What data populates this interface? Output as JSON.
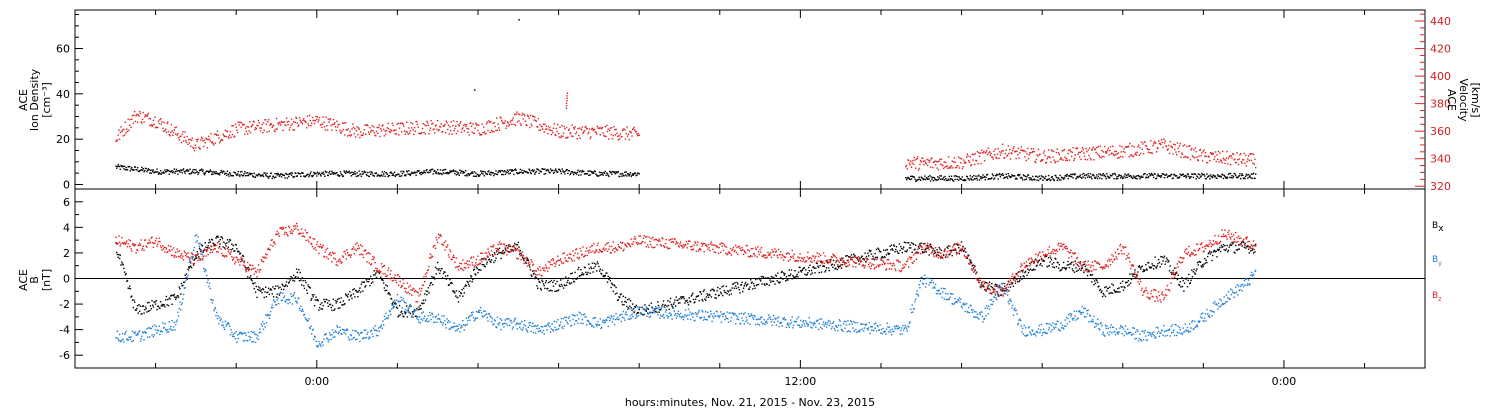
{
  "chart_data": [
    {
      "type": "scatter",
      "panel": "top",
      "ylabel_left": [
        "ACE",
        "Ion Density",
        "[cm⁻³]"
      ],
      "ylabel_right": [
        "ACE",
        "Velocity",
        "[km/s]"
      ],
      "yticks_left": [
        "0",
        "20",
        "40",
        "60"
      ],
      "yticks_right": [
        "320",
        "340",
        "360",
        "380",
        "400",
        "420",
        "440"
      ],
      "ylim_left": [
        -2,
        77
      ],
      "ylim_right": [
        318,
        448
      ],
      "gaps": [
        [
          8.3,
          14.6
        ]
      ],
      "series": [
        {
          "name": "Ion Density",
          "axis": "left",
          "color": "#000000",
          "x": [
            -5,
            -4.5,
            -4,
            -3,
            -2,
            -1,
            0,
            1,
            2,
            3,
            4,
            5,
            6,
            7,
            8.0
          ],
          "values": [
            8,
            7,
            6,
            6,
            5,
            4,
            5,
            5,
            5,
            6,
            5,
            6,
            6,
            5,
            5
          ]
        },
        {
          "name": "Velocity",
          "axis": "right",
          "color": "#e02020",
          "x": [
            -5,
            -4.5,
            -4,
            -3,
            -2,
            -1,
            0,
            1,
            2,
            3,
            4,
            5,
            6,
            7,
            8.0
          ],
          "values": [
            355,
            372,
            368,
            350,
            362,
            365,
            368,
            360,
            362,
            364,
            362,
            370,
            360,
            360,
            358
          ]
        },
        {
          "name": "Ion Density",
          "axis": "left",
          "color": "#000000",
          "x": [
            14.6,
            15,
            16,
            17,
            18,
            19,
            20,
            21,
            22,
            23.3
          ],
          "values": [
            3,
            3,
            3,
            4,
            3,
            4,
            4,
            4,
            4,
            4
          ]
        },
        {
          "name": "Velocity",
          "axis": "right",
          "color": "#e02020",
          "x": [
            14.6,
            15,
            16,
            17,
            18,
            19,
            20,
            21,
            22,
            23.3
          ],
          "values": [
            338,
            337,
            338,
            346,
            342,
            344,
            346,
            350,
            342,
            339
          ]
        }
      ],
      "annotations": [
        {
          "x": 5.0,
          "y": 73,
          "axis": "left",
          "note": "isolated density point"
        },
        {
          "x": 3.9,
          "y": 42,
          "axis": "left",
          "note": "isolated density point"
        },
        {
          "x": 6.2,
          "y": 388,
          "axis": "right",
          "note": "velocity spike"
        }
      ]
    },
    {
      "type": "scatter",
      "panel": "bottom",
      "ylabel_left": [
        "ACE",
        "B",
        "[nT]"
      ],
      "yticks_left": [
        "-6",
        "-4",
        "-2",
        "0",
        "2",
        "4",
        "6"
      ],
      "ylim_left": [
        -7,
        7
      ],
      "zero_line": true,
      "legend_position": "right",
      "legend": [
        {
          "label": "B",
          "sub": "x",
          "color": "#000000"
        },
        {
          "label": "B",
          "sub": "y",
          "color": "#1f7fd6"
        },
        {
          "label": "B",
          "sub": "z",
          "color": "#e02020"
        }
      ],
      "series": [
        {
          "name": "Bx",
          "color": "#000000",
          "x": [
            -5,
            -4.5,
            -4,
            -3.5,
            -3,
            -2.5,
            -2,
            -1.5,
            -1,
            -0.5,
            0,
            0.5,
            1,
            1.5,
            2,
            2.5,
            3,
            3.5,
            4,
            4.5,
            5,
            5.5,
            6,
            6.5,
            7,
            7.5,
            8.0,
            14.6,
            15,
            15.5,
            16,
            16.5,
            17,
            17.5,
            18,
            18.5,
            19,
            19.5,
            20,
            20.5,
            21,
            21.5,
            22,
            22.5,
            23,
            23.3
          ],
          "values": [
            2.5,
            -2.5,
            -2.0,
            -1.5,
            2.0,
            3.0,
            2.5,
            -1.0,
            -1.0,
            0.5,
            -2.0,
            -2.0,
            -1.0,
            0.5,
            -2.5,
            -2.5,
            1.0,
            -1.5,
            1.0,
            2.0,
            2.5,
            -0.5,
            -0.5,
            0.5,
            1.0,
            -1.5,
            -2.5,
            2.5,
            2.5,
            2.0,
            2.5,
            -0.5,
            -1.0,
            0.5,
            1.5,
            1.0,
            1.0,
            -1.0,
            -0.5,
            1.0,
            1.5,
            -0.5,
            1.5,
            2.5,
            2.5,
            2.5
          ]
        },
        {
          "name": "By",
          "color": "#1f7fd6",
          "x": [
            -5,
            -4.5,
            -4,
            -3.5,
            -3,
            -2.5,
            -2,
            -1.5,
            -1,
            -0.5,
            0,
            0.5,
            1,
            1.5,
            2,
            2.5,
            3,
            3.5,
            4,
            4.5,
            5,
            5.5,
            6,
            6.5,
            7,
            7.5,
            8.0,
            14.6,
            15,
            15.5,
            16,
            16.5,
            17,
            17.5,
            18,
            18.5,
            19,
            19.5,
            20,
            20.5,
            21,
            21.5,
            22,
            22.5,
            23,
            23.3
          ],
          "values": [
            -4.5,
            -4.5,
            -4.0,
            -3.5,
            3.5,
            -3.0,
            -4.5,
            -4.5,
            -1.5,
            -1.5,
            -5.0,
            -4.0,
            -4.5,
            -4.0,
            -1.5,
            -3.0,
            -3.0,
            -4.0,
            -2.5,
            -3.5,
            -3.5,
            -4.0,
            -3.5,
            -3.0,
            -3.5,
            -3.0,
            -2.5,
            -4.0,
            0.0,
            -1.0,
            -2.0,
            -3.0,
            -0.5,
            -4.0,
            -4.0,
            -3.5,
            -2.5,
            -4.0,
            -4.0,
            -4.5,
            -4.0,
            -4.0,
            -3.0,
            -1.5,
            -0.5,
            0.5
          ]
        },
        {
          "name": "Bz",
          "color": "#e02020",
          "x": [
            -5,
            -4.5,
            -4,
            -3.5,
            -3,
            -2.5,
            -2,
            -1.5,
            -1,
            -0.5,
            0,
            0.5,
            1,
            1.5,
            2,
            2.5,
            3,
            3.5,
            4,
            4.5,
            5,
            5.5,
            6,
            6.5,
            7,
            7.5,
            8.0,
            14.6,
            15,
            15.5,
            16,
            16.5,
            17,
            17.5,
            18,
            18.5,
            19,
            19.5,
            20,
            20.5,
            21,
            21.5,
            22,
            22.5,
            23,
            23.3
          ],
          "values": [
            3.0,
            2.5,
            3.0,
            2.0,
            1.5,
            2.5,
            1.5,
            0.5,
            3.5,
            4.0,
            2.5,
            1.5,
            2.5,
            1.0,
            0.0,
            -1.5,
            3.5,
            1.0,
            1.5,
            2.5,
            2.0,
            0.5,
            1.5,
            2.0,
            2.5,
            2.5,
            3.0,
            1.0,
            2.5,
            2.0,
            2.5,
            -0.5,
            -1.0,
            1.0,
            2.0,
            2.5,
            1.0,
            1.0,
            2.5,
            -1.0,
            -1.5,
            2.0,
            2.5,
            3.5,
            3.0,
            2.5
          ]
        }
      ]
    }
  ],
  "xaxis": {
    "title": "hours:minutes, Nov. 21, 2015 - Nov. 23, 2015",
    "xlim": [
      -6,
      27.5
    ],
    "major_ticks": [
      {
        "x": 0,
        "label": "0:00"
      },
      {
        "x": 12,
        "label": "12:00"
      },
      {
        "x": 24,
        "label": "0:00"
      }
    ],
    "minor_step": 2
  }
}
